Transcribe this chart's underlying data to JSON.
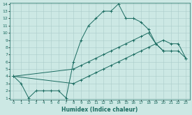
{
  "xlabel": "Humidex (Indice chaleur)",
  "xlim": [
    -0.5,
    23.5
  ],
  "ylim": [
    0.8,
    14.2
  ],
  "xticks": [
    0,
    1,
    2,
    3,
    4,
    5,
    6,
    7,
    8,
    9,
    10,
    11,
    12,
    13,
    14,
    15,
    16,
    17,
    18,
    19,
    20,
    21,
    22,
    23
  ],
  "yticks": [
    1,
    2,
    3,
    4,
    5,
    6,
    7,
    8,
    9,
    10,
    11,
    12,
    13,
    14
  ],
  "bg_color": "#cce8e4",
  "grid_color": "#aaccca",
  "line_color": "#1a6b60",
  "s1x": [
    0,
    1,
    2,
    3,
    4,
    5,
    6,
    7,
    8,
    9,
    10,
    11,
    12,
    13,
    14,
    15,
    16,
    17,
    18,
    19,
    20
  ],
  "s1y": [
    4,
    3,
    1,
    2,
    2,
    2,
    2,
    1,
    6,
    9,
    11,
    12,
    13,
    13,
    14,
    12,
    12,
    11.5,
    10.5,
    8.5,
    7.5
  ],
  "s2x": [
    0,
    8,
    9,
    10,
    11,
    12,
    13,
    14,
    15,
    16,
    17,
    18,
    19,
    20,
    21,
    22,
    23
  ],
  "s2y": [
    4,
    5,
    5.5,
    6,
    6.5,
    7,
    7.5,
    8,
    8.5,
    9,
    9.5,
    10,
    8.5,
    7.5,
    7.5,
    7.5,
    6.5
  ],
  "s3x": [
    0,
    8,
    9,
    10,
    11,
    12,
    13,
    14,
    15,
    16,
    17,
    18,
    19,
    20,
    21,
    22,
    23
  ],
  "s3y": [
    4,
    3,
    3.5,
    4,
    4.5,
    5,
    5.5,
    6,
    6.5,
    7,
    7.5,
    8,
    8.5,
    9,
    8.5,
    8.5,
    6.5
  ]
}
